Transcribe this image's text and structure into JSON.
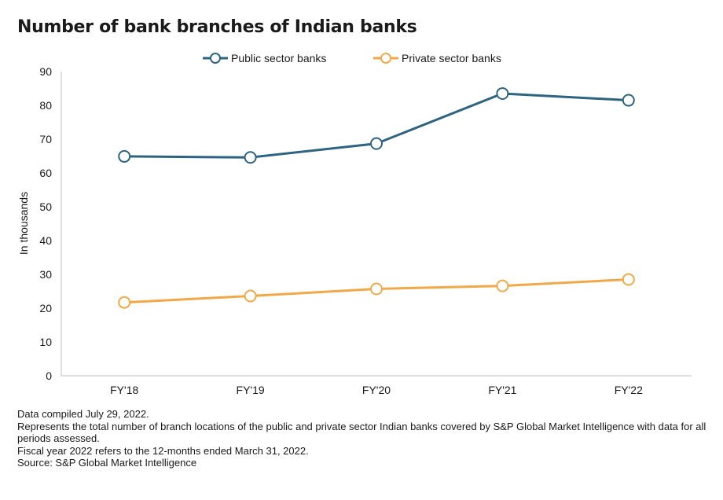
{
  "chart_data": {
    "type": "line",
    "title": "Number of bank branches of Indian banks",
    "ylabel": "In thousands",
    "xlabel": "",
    "categories": [
      "FY'18",
      "FY'19",
      "FY'20",
      "FY'21",
      "FY'22"
    ],
    "ylim": [
      0,
      90
    ],
    "yticks": [
      0,
      10,
      20,
      30,
      40,
      50,
      60,
      70,
      80,
      90
    ],
    "grid": false,
    "legend": "top-center",
    "series": [
      {
        "name": "Public sector banks",
        "color": "#2e6480",
        "values": [
          64.9,
          64.6,
          68.7,
          83.5,
          81.5
        ]
      },
      {
        "name": "Private sector banks",
        "color": "#f0a94a",
        "values": [
          21.7,
          23.6,
          25.7,
          26.6,
          28.5
        ]
      }
    ]
  },
  "notes": [
    "Data compiled July 29, 2022.",
    "Represents the total number of branch locations of the public and private sector Indian banks covered by S&P Global Market Intelligence with data for all periods assessed.",
    "Fiscal year 2022 refers to the 12-months ended March 31, 2022.",
    "Source: S&P Global Market Intelligence"
  ]
}
